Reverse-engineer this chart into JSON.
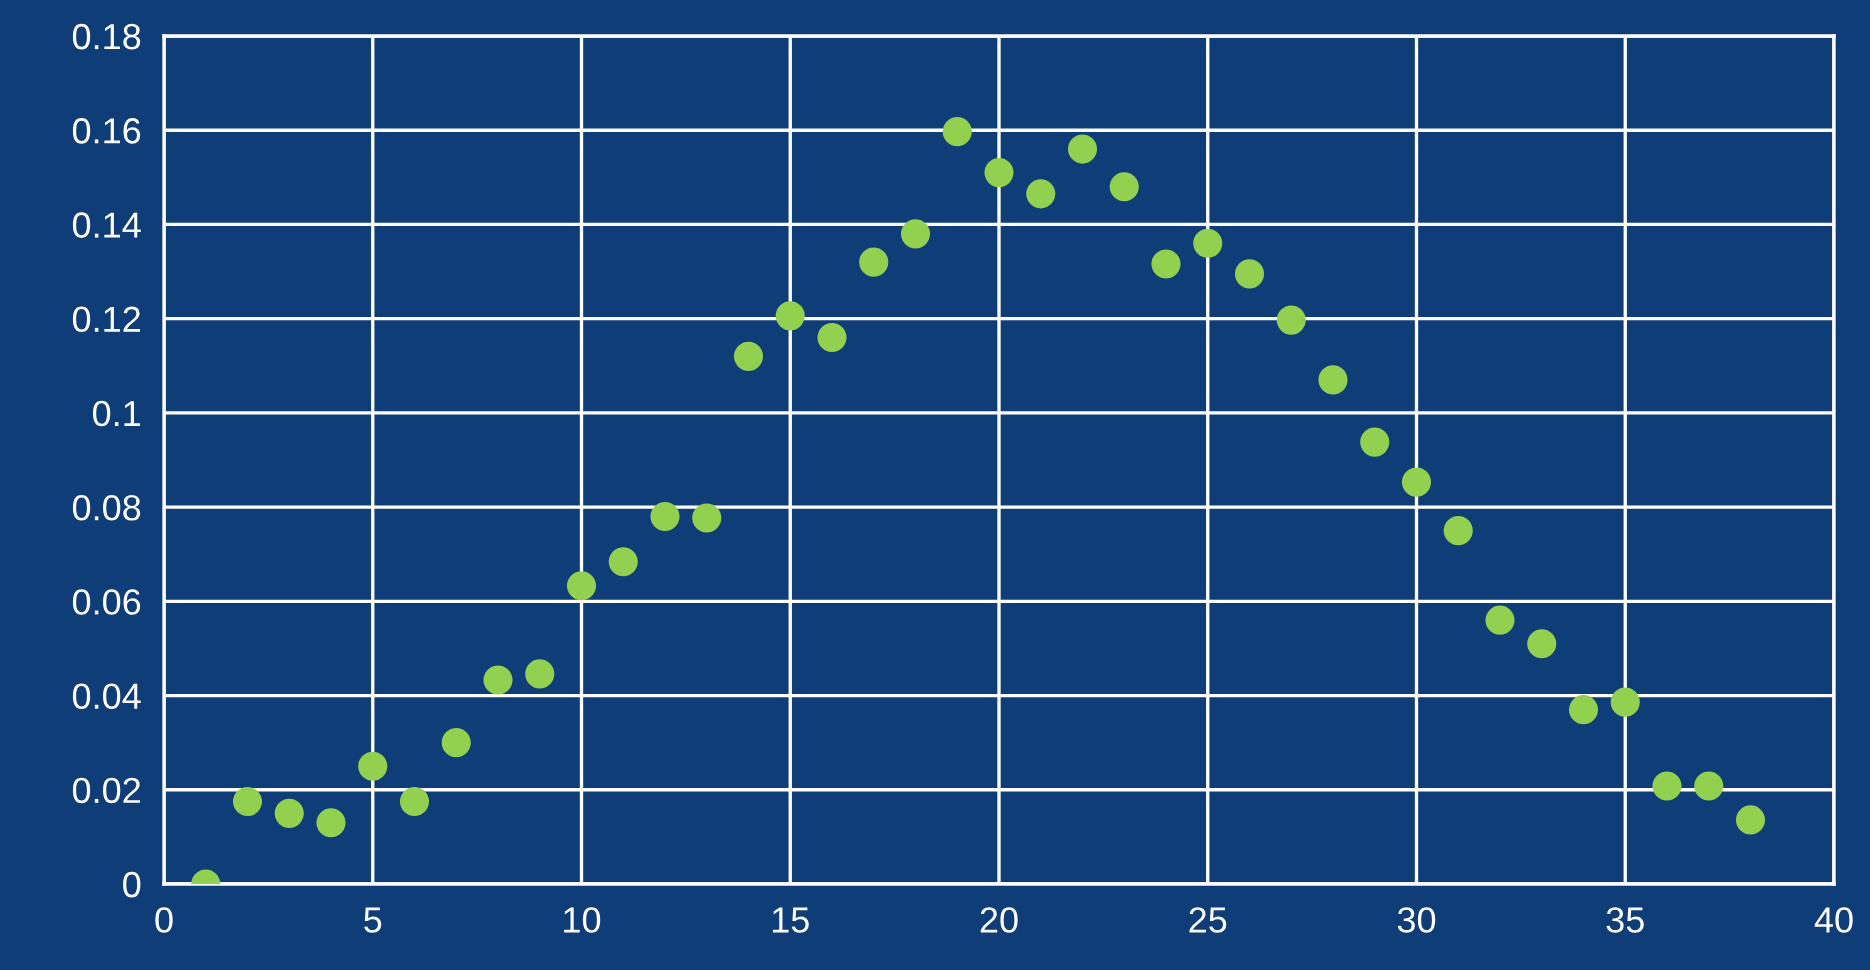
{
  "chart_data": {
    "type": "scatter",
    "x": [
      1,
      2,
      3,
      4,
      5,
      6,
      7,
      8,
      9,
      10,
      11,
      12,
      13,
      14,
      15,
      16,
      17,
      18,
      19,
      20,
      21,
      22,
      23,
      24,
      25,
      26,
      27,
      28,
      29,
      30,
      31,
      32,
      33,
      34,
      35,
      36,
      37,
      38
    ],
    "values": [
      0.0,
      0.0175,
      0.015,
      0.013,
      0.025,
      0.0175,
      0.03,
      0.0433,
      0.0446,
      0.0633,
      0.0684,
      0.078,
      0.0777,
      0.112,
      0.1206,
      0.116,
      0.132,
      0.138,
      0.1597,
      0.151,
      0.1465,
      0.156,
      0.148,
      0.1316,
      0.136,
      0.1295,
      0.1197,
      0.107,
      0.0938,
      0.0853,
      0.075,
      0.056,
      0.051,
      0.037,
      0.0386,
      0.0208,
      0.0208,
      0.0136
    ],
    "color": "#92d050",
    "marker": "circle",
    "xlim": [
      0,
      40
    ],
    "xticks": [
      0,
      5,
      10,
      15,
      20,
      25,
      30,
      35,
      40
    ],
    "ylim": [
      0,
      0.18
    ],
    "yticks": [
      0,
      0.02,
      0.04,
      0.06,
      0.08,
      0.1,
      0.12,
      0.14,
      0.16,
      0.18
    ],
    "grid": true
  }
}
